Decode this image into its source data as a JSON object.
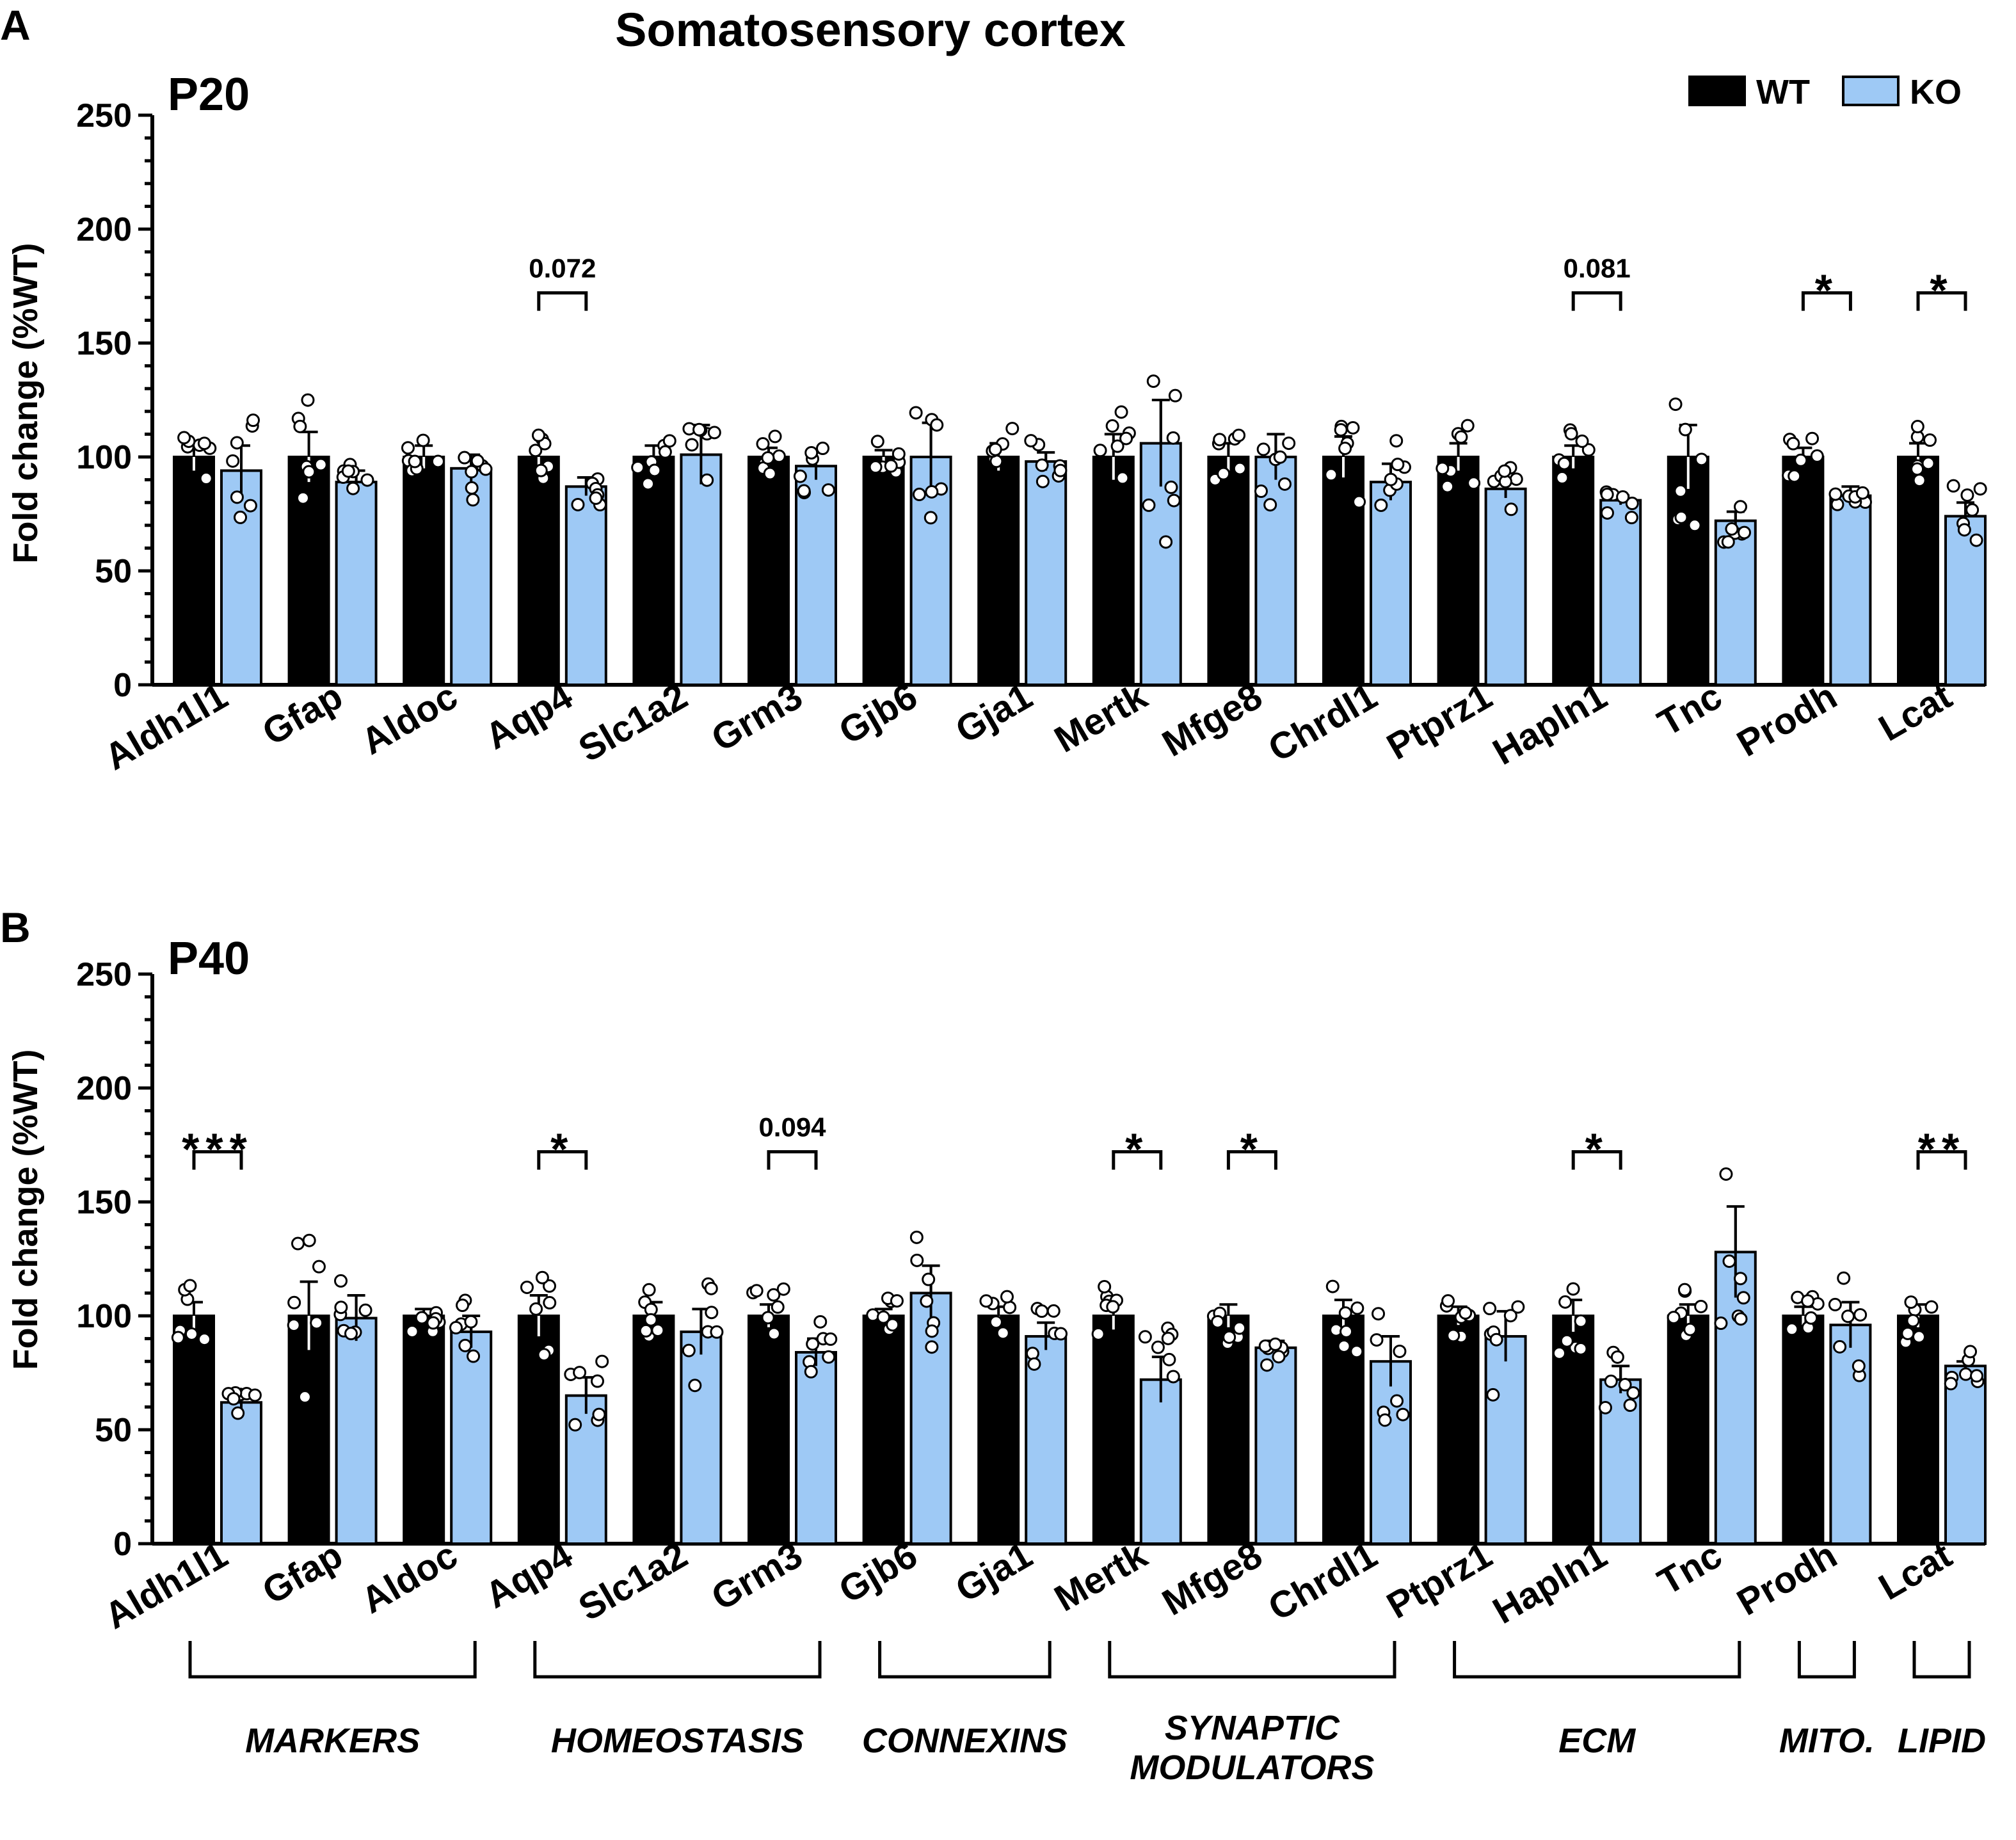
{
  "figure": {
    "title": "Somatosensory cortex",
    "legend": [
      {
        "label": "WT",
        "color": "#000000"
      },
      {
        "label": "KO",
        "color": "#9ec9f5"
      }
    ],
    "colors": {
      "wt": "#000000",
      "ko": "#9ec9f5",
      "axis": "#000000"
    }
  },
  "chart_data": [
    {
      "type": "bar",
      "panel": "A",
      "age": "P20",
      "ylabel": "Fold change (%WT)",
      "ylim": [
        0,
        250
      ],
      "yticks": [
        "0",
        "50",
        "100",
        "150",
        "200",
        "250"
      ],
      "categories": [
        "Aldh1l1",
        "Gfap",
        "Aldoc",
        "Aqp4",
        "Slc1a2",
        "Grm3",
        "Gjb6",
        "Gja1",
        "Mertk",
        "Mfge8",
        "Chrdl1",
        "Ptprz1",
        "Hapln1",
        "Tnc",
        "Prodh",
        "Lcat"
      ],
      "series": [
        {
          "name": "WT",
          "values": [
            100,
            100,
            100,
            100,
            100,
            100,
            100,
            100,
            100,
            100,
            100,
            100,
            100,
            100,
            100,
            100
          ],
          "sem": [
            6,
            11,
            5,
            4,
            5,
            4,
            3,
            6,
            10,
            6,
            9,
            6,
            5,
            14,
            4,
            6
          ]
        },
        {
          "name": "KO",
          "values": [
            94,
            89,
            95,
            87,
            101,
            96,
            100,
            98,
            106,
            100,
            89,
            86,
            81,
            72,
            83,
            74
          ],
          "sem": [
            11,
            5,
            6,
            4,
            13,
            6,
            15,
            4,
            19,
            10,
            8,
            4,
            2,
            4,
            4,
            6
          ]
        }
      ],
      "annotations": [
        {
          "category": "Aqp4",
          "label": "0.072"
        },
        {
          "category": "Hapln1",
          "label": "0.081"
        },
        {
          "category": "Prodh",
          "label": "*"
        },
        {
          "category": "Lcat",
          "label": "*"
        }
      ]
    },
    {
      "type": "bar",
      "panel": "B",
      "age": "P40",
      "ylabel": "Fold change (%WT)",
      "ylim": [
        0,
        250
      ],
      "yticks": [
        "0",
        "50",
        "100",
        "150",
        "200",
        "250"
      ],
      "categories": [
        "Aldh1l1",
        "Gfap",
        "Aldoc",
        "Aqp4",
        "Slc1a2",
        "Grm3",
        "Gjb6",
        "Gja1",
        "Mertk",
        "Mfge8",
        "Chrdl1",
        "Ptprz1",
        "Hapln1",
        "Tnc",
        "Prodh",
        "Lcat"
      ],
      "series": [
        {
          "name": "WT",
          "values": [
            100,
            100,
            100,
            100,
            100,
            100,
            100,
            100,
            100,
            100,
            100,
            100,
            100,
            100,
            100,
            100
          ],
          "sem": [
            6,
            15,
            3,
            9,
            6,
            5,
            3,
            4,
            6,
            5,
            7,
            4,
            7,
            5,
            4,
            5
          ]
        },
        {
          "name": "KO",
          "values": [
            62,
            99,
            93,
            65,
            93,
            84,
            110,
            91,
            72,
            86,
            80,
            91,
            72,
            128,
            96,
            78
          ],
          "sem": [
            3,
            10,
            7,
            8,
            10,
            6,
            12,
            6,
            10,
            3,
            11,
            11,
            6,
            20,
            10,
            2
          ]
        }
      ],
      "annotations": [
        {
          "category": "Aldh1l1",
          "label": "***"
        },
        {
          "category": "Aqp4",
          "label": "*"
        },
        {
          "category": "Grm3",
          "label": "0.094"
        },
        {
          "category": "Mertk",
          "label": "*"
        },
        {
          "category": "Mfge8",
          "label": "*"
        },
        {
          "category": "Hapln1",
          "label": "*"
        },
        {
          "category": "Lcat",
          "label": "**"
        }
      ],
      "groups": [
        {
          "label": "MARKERS",
          "start": "Aldh1l1",
          "end": "Aldoc"
        },
        {
          "label": "HOMEOSTASIS",
          "start": "Aqp4",
          "end": "Grm3"
        },
        {
          "label": "CONNEXINS",
          "start": "Gjb6",
          "end": "Gja1"
        },
        {
          "label": "SYNAPTIC MODULATORS",
          "start": "Mertk",
          "end": "Chrdl1"
        },
        {
          "label": "ECM",
          "start": "Ptprz1",
          "end": "Tnc"
        },
        {
          "label": "MITO.",
          "start": "Prodh",
          "end": "Prodh"
        },
        {
          "label": "LIPID",
          "start": "Lcat",
          "end": "Lcat"
        }
      ]
    }
  ]
}
